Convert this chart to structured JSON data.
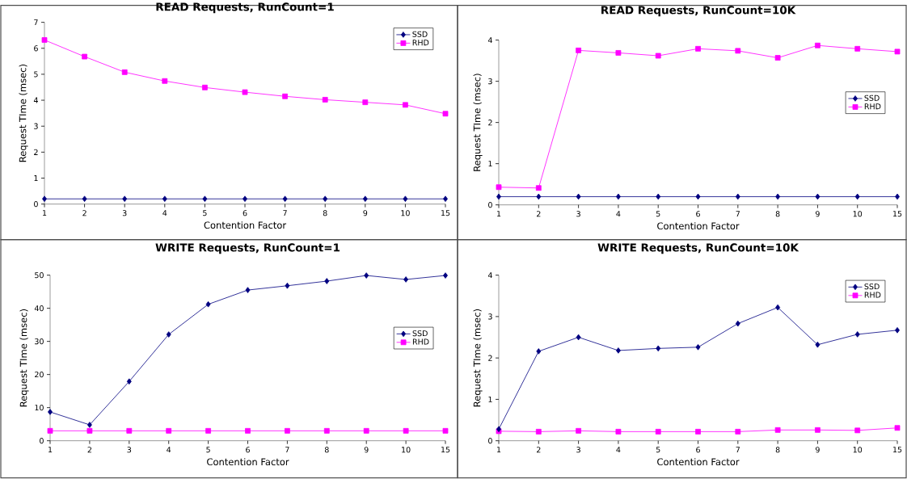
{
  "chart_data": [
    {
      "type": "line",
      "title": "READ Requests, RunCount=1",
      "xlabel": "Contention Factor",
      "ylabel": "Request TIme (msec)",
      "categories": [
        "1",
        "2",
        "3",
        "4",
        "5",
        "6",
        "7",
        "8",
        "9",
        "10",
        "15"
      ],
      "ylim": [
        0,
        7
      ],
      "yticks": [
        0,
        1,
        2,
        3,
        4,
        5,
        6,
        7
      ],
      "legend": "top right",
      "grid": false,
      "series": [
        {
          "name": "SSD",
          "color": "#000080",
          "marker": "diamond",
          "values": [
            0.2,
            0.2,
            0.2,
            0.2,
            0.2,
            0.2,
            0.2,
            0.2,
            0.2,
            0.2,
            0.2
          ]
        },
        {
          "name": "RHD",
          "color": "#ff00ff",
          "marker": "square",
          "values": [
            6.32,
            5.68,
            5.08,
            4.74,
            4.49,
            4.31,
            4.15,
            4.02,
            3.92,
            3.82,
            3.48
          ]
        }
      ]
    },
    {
      "type": "line",
      "title": "READ Requests, RunCount=10K",
      "xlabel": "Contention Factor",
      "ylabel": "Request TIme (msec)",
      "categories": [
        "1",
        "2",
        "3",
        "4",
        "5",
        "6",
        "7",
        "8",
        "9",
        "10",
        "15"
      ],
      "ylim": [
        0,
        4
      ],
      "yticks": [
        0,
        1,
        2,
        3,
        4
      ],
      "legend": "right",
      "grid": false,
      "series": [
        {
          "name": "SSD",
          "color": "#000080",
          "marker": "diamond",
          "values": [
            0.2,
            0.2,
            0.2,
            0.2,
            0.2,
            0.2,
            0.2,
            0.2,
            0.2,
            0.2,
            0.2
          ]
        },
        {
          "name": "RHD",
          "color": "#ff00ff",
          "marker": "square",
          "values": [
            0.43,
            0.41,
            3.75,
            3.69,
            3.62,
            3.79,
            3.74,
            3.57,
            3.87,
            3.79,
            3.72
          ]
        }
      ]
    },
    {
      "type": "line",
      "title": "WRITE Requests, RunCount=1",
      "xlabel": "Contention Factor",
      "ylabel": "Request TIme (msec)",
      "categories": [
        "1",
        "2",
        "3",
        "4",
        "5",
        "6",
        "7",
        "8",
        "9",
        "10",
        "15"
      ],
      "ylim": [
        0,
        50
      ],
      "yticks": [
        0,
        10,
        20,
        30,
        40,
        50
      ],
      "legend": "right",
      "grid": false,
      "series": [
        {
          "name": "SSD",
          "color": "#000080",
          "marker": "diamond",
          "values": [
            8.7,
            4.8,
            17.9,
            32.1,
            41.2,
            45.5,
            46.8,
            48.2,
            49.9,
            48.7,
            49.9
          ]
        },
        {
          "name": "RHD",
          "color": "#ff00ff",
          "marker": "square",
          "values": [
            3.0,
            3.0,
            3.0,
            3.0,
            3.0,
            3.0,
            3.0,
            3.0,
            3.0,
            3.0,
            3.0
          ]
        }
      ]
    },
    {
      "type": "line",
      "title": "WRITE Requests, RunCount=10K",
      "xlabel": "Contention Factor",
      "ylabel": "Request TIme (msec)",
      "categories": [
        "1",
        "2",
        "3",
        "4",
        "5",
        "6",
        "7",
        "8",
        "9",
        "10",
        "15"
      ],
      "ylim": [
        0,
        4
      ],
      "yticks": [
        0,
        1,
        2,
        3,
        4
      ],
      "legend": "top right",
      "grid": false,
      "series": [
        {
          "name": "SSD",
          "color": "#000080",
          "marker": "diamond",
          "values": [
            0.28,
            2.16,
            2.5,
            2.18,
            2.23,
            2.26,
            2.83,
            3.22,
            2.32,
            2.57,
            2.67
          ]
        },
        {
          "name": "RHD",
          "color": "#ff00ff",
          "marker": "square",
          "values": [
            0.23,
            0.22,
            0.24,
            0.22,
            0.22,
            0.22,
            0.22,
            0.26,
            0.26,
            0.25,
            0.31
          ]
        }
      ]
    }
  ]
}
